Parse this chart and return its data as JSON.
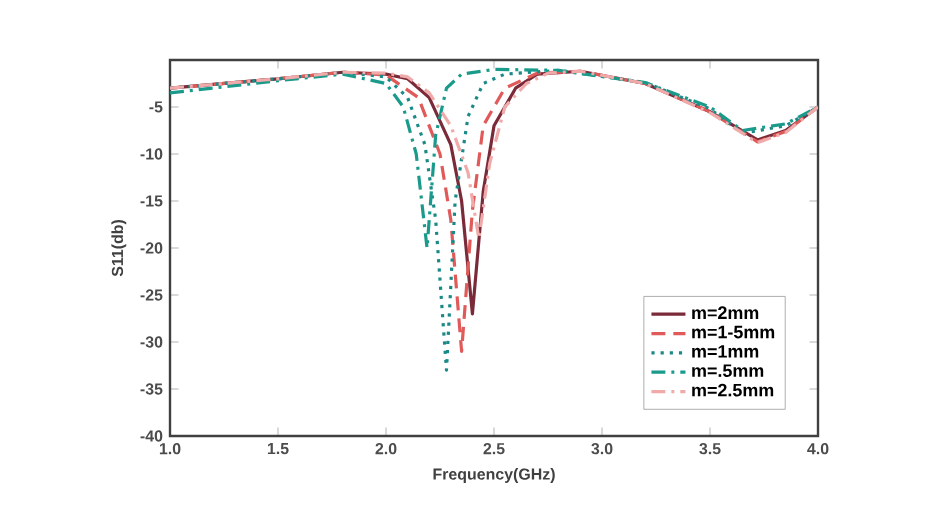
{
  "chart_data": {
    "type": "line",
    "xlabel": "Frequency(GHz)",
    "ylabel": "S11(db)",
    "xlim": [
      1.0,
      4.0
    ],
    "ylim": [
      -40,
      0
    ],
    "xticks": [
      {
        "value": 1.0,
        "label": "1.0"
      },
      {
        "value": 1.5,
        "label": "1.5"
      },
      {
        "value": 2.0,
        "label": "2.0"
      },
      {
        "value": 2.5,
        "label": "2.5"
      },
      {
        "value": 3.0,
        "label": "3.0"
      },
      {
        "value": 3.5,
        "label": "3.5"
      },
      {
        "value": 4.0,
        "label": "4.0"
      }
    ],
    "yticks": [
      -40,
      -35,
      -30,
      -25,
      -20,
      -15,
      -10,
      -5
    ],
    "grid": false,
    "legend": "bottom right",
    "marker": "none",
    "series": [
      {
        "name": "m=2mm",
        "color": "#7a2a38",
        "line_style": "solid",
        "x": [
          1.0,
          1.5,
          1.8,
          2.0,
          2.1,
          2.2,
          2.3,
          2.35,
          2.4,
          2.45,
          2.5,
          2.6,
          2.7,
          2.9,
          3.2,
          3.5,
          3.72,
          3.85,
          4.0
        ],
        "values": [
          -3,
          -2,
          -1.3,
          -1.5,
          -2,
          -4,
          -9,
          -15,
          -27,
          -14,
          -7,
          -3,
          -1.5,
          -1.2,
          -2.5,
          -5.5,
          -8.5,
          -7.5,
          -5
        ]
      },
      {
        "name": "m=1-5mm",
        "color": "#e05a5a",
        "line_style": "dashed",
        "x": [
          1.0,
          1.5,
          1.8,
          2.0,
          2.15,
          2.25,
          2.3,
          2.35,
          2.4,
          2.45,
          2.55,
          2.7,
          2.9,
          3.2,
          3.5,
          3.72,
          3.85,
          4.0
        ],
        "values": [
          -3,
          -2,
          -1.3,
          -1.6,
          -4,
          -10,
          -17,
          -31,
          -16,
          -7,
          -3,
          -1.4,
          -1.2,
          -2.5,
          -5.5,
          -8.7,
          -7.6,
          -5
        ]
      },
      {
        "name": "m=1mm",
        "color": "#1a8a88",
        "line_style": "dotted",
        "x": [
          1.0,
          1.5,
          1.8,
          2.0,
          2.1,
          2.18,
          2.23,
          2.28,
          2.32,
          2.38,
          2.45,
          2.55,
          2.8,
          3.2,
          3.5,
          3.65,
          3.85,
          4.0
        ],
        "values": [
          -3,
          -2,
          -1.3,
          -1.8,
          -4,
          -9,
          -17,
          -33,
          -15,
          -6,
          -2.5,
          -1.5,
          -1.1,
          -2.4,
          -5.2,
          -7.8,
          -7,
          -5
        ]
      },
      {
        "name": "m=.5mm",
        "color": "#1a9a8a",
        "line_style": "dashdot",
        "x": [
          1.0,
          1.5,
          1.8,
          2.0,
          2.08,
          2.14,
          2.19,
          2.23,
          2.28,
          2.35,
          2.5,
          2.8,
          3.2,
          3.5,
          3.65,
          3.85,
          4.0
        ],
        "values": [
          -3.5,
          -2.2,
          -1.5,
          -2.5,
          -5,
          -10,
          -20,
          -8,
          -3,
          -1.5,
          -1,
          -1.1,
          -2.4,
          -5,
          -7.5,
          -6.8,
          -5
        ]
      },
      {
        "name": "m=2.5mm",
        "color": "#f0aaaa",
        "line_style": "dashdot",
        "x": [
          1.0,
          1.5,
          1.8,
          2.0,
          2.1,
          2.2,
          2.3,
          2.38,
          2.43,
          2.48,
          2.55,
          2.65,
          2.75,
          2.9,
          3.2,
          3.5,
          3.72,
          3.85,
          4.0
        ],
        "values": [
          -3,
          -2,
          -1.3,
          -1.4,
          -1.8,
          -3.5,
          -7,
          -12,
          -19,
          -11,
          -5,
          -2.5,
          -1.4,
          -1.2,
          -2.5,
          -5.6,
          -8.8,
          -7.7,
          -5
        ]
      }
    ]
  }
}
